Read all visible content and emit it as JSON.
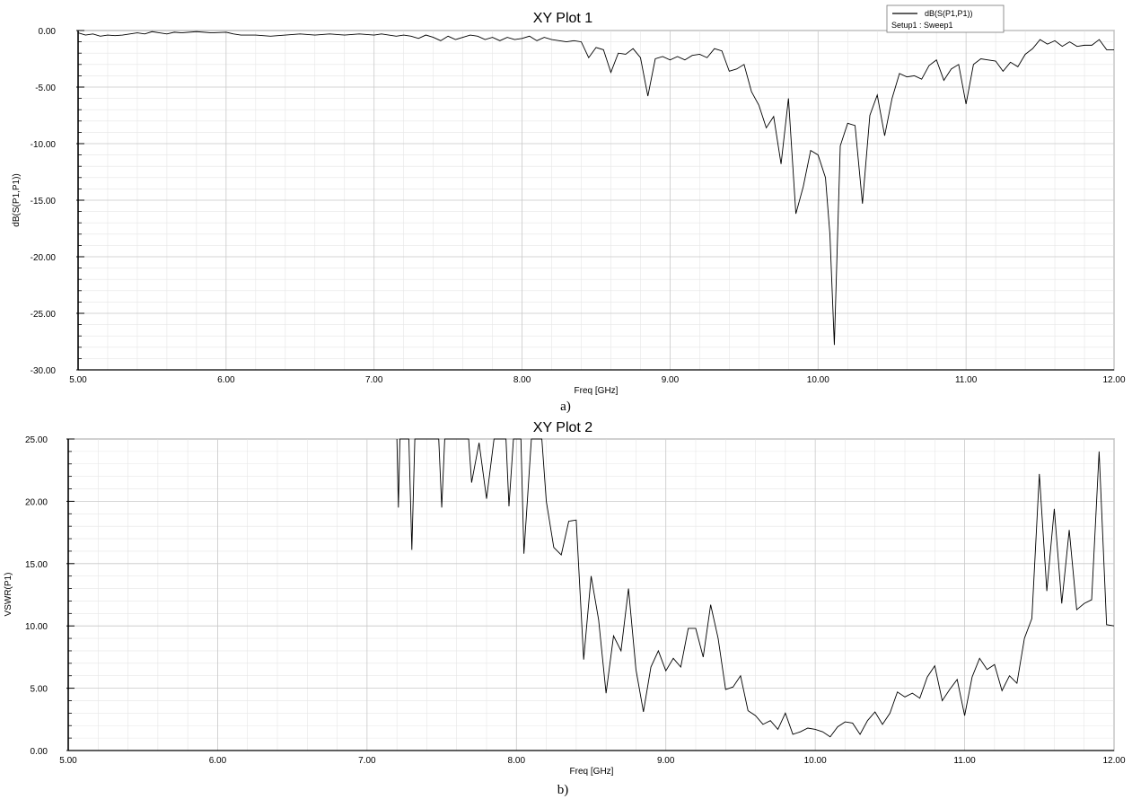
{
  "chart_data": [
    {
      "type": "line",
      "title": "XY Plot 1",
      "xlabel": "Freq [GHz]",
      "ylabel": "dB(S(P1,P1))",
      "caption": "a)",
      "xlim": [
        5,
        12
      ],
      "ylim": [
        -30,
        0
      ],
      "x_ticks": [
        "5.00",
        "6.00",
        "7.00",
        "8.00",
        "9.00",
        "10.00",
        "11.00",
        "12.00"
      ],
      "y_ticks": [
        "0.00",
        "-5.00",
        "-10.00",
        "-15.00",
        "-20.00",
        "-25.00",
        "-30.00"
      ],
      "grid": true,
      "legend_position": "top-right",
      "legend": {
        "trace": "dB(S(P1,P1))",
        "setup": "Setup1 : Sweep1"
      },
      "series": [
        {
          "name": "dB(S(P1,P1))",
          "color": "#000000",
          "points": [
            [
              5.0,
              -0.2
            ],
            [
              5.05,
              -0.4
            ],
            [
              5.1,
              -0.3
            ],
            [
              5.15,
              -0.5
            ],
            [
              5.2,
              -0.4
            ],
            [
              5.25,
              -0.45
            ],
            [
              5.3,
              -0.4
            ],
            [
              5.35,
              -0.3
            ],
            [
              5.4,
              -0.2
            ],
            [
              5.45,
              -0.3
            ],
            [
              5.5,
              -0.1
            ],
            [
              5.55,
              -0.2
            ],
            [
              5.6,
              -0.3
            ],
            [
              5.65,
              -0.15
            ],
            [
              5.7,
              -0.2
            ],
            [
              5.8,
              -0.1
            ],
            [
              5.9,
              -0.2
            ],
            [
              6.0,
              -0.15
            ],
            [
              6.05,
              -0.3
            ],
            [
              6.1,
              -0.4
            ],
            [
              6.2,
              -0.4
            ],
            [
              6.3,
              -0.5
            ],
            [
              6.4,
              -0.4
            ],
            [
              6.5,
              -0.3
            ],
            [
              6.6,
              -0.4
            ],
            [
              6.7,
              -0.3
            ],
            [
              6.8,
              -0.4
            ],
            [
              6.9,
              -0.3
            ],
            [
              7.0,
              -0.4
            ],
            [
              7.05,
              -0.3
            ],
            [
              7.1,
              -0.4
            ],
            [
              7.15,
              -0.5
            ],
            [
              7.2,
              -0.4
            ],
            [
              7.25,
              -0.5
            ],
            [
              7.3,
              -0.7
            ],
            [
              7.35,
              -0.4
            ],
            [
              7.4,
              -0.6
            ],
            [
              7.45,
              -0.9
            ],
            [
              7.5,
              -0.5
            ],
            [
              7.55,
              -0.8
            ],
            [
              7.6,
              -0.6
            ],
            [
              7.65,
              -0.4
            ],
            [
              7.7,
              -0.5
            ],
            [
              7.75,
              -0.8
            ],
            [
              7.8,
              -0.6
            ],
            [
              7.85,
              -0.9
            ],
            [
              7.9,
              -0.6
            ],
            [
              7.95,
              -0.8
            ],
            [
              8.0,
              -0.7
            ],
            [
              8.05,
              -0.5
            ],
            [
              8.1,
              -0.9
            ],
            [
              8.15,
              -0.6
            ],
            [
              8.2,
              -0.8
            ],
            [
              8.25,
              -0.9
            ],
            [
              8.3,
              -1.0
            ],
            [
              8.35,
              -0.9
            ],
            [
              8.4,
              -1.0
            ],
            [
              8.45,
              -2.4
            ],
            [
              8.5,
              -1.5
            ],
            [
              8.55,
              -1.7
            ],
            [
              8.6,
              -3.7
            ],
            [
              8.65,
              -2.0
            ],
            [
              8.7,
              -2.1
            ],
            [
              8.75,
              -1.6
            ],
            [
              8.8,
              -2.4
            ],
            [
              8.85,
              -5.8
            ],
            [
              8.9,
              -2.5
            ],
            [
              8.95,
              -2.3
            ],
            [
              9.0,
              -2.6
            ],
            [
              9.05,
              -2.3
            ],
            [
              9.1,
              -2.6
            ],
            [
              9.15,
              -2.2
            ],
            [
              9.2,
              -2.1
            ],
            [
              9.25,
              -2.4
            ],
            [
              9.3,
              -1.6
            ],
            [
              9.35,
              -1.8
            ],
            [
              9.4,
              -3.6
            ],
            [
              9.45,
              -3.4
            ],
            [
              9.5,
              -3.0
            ],
            [
              9.55,
              -5.4
            ],
            [
              9.6,
              -6.6
            ],
            [
              9.65,
              -8.6
            ],
            [
              9.7,
              -7.6
            ],
            [
              9.75,
              -11.8
            ],
            [
              9.8,
              -6.0
            ],
            [
              9.85,
              -16.2
            ],
            [
              9.9,
              -13.8
            ],
            [
              9.95,
              -10.6
            ],
            [
              10.0,
              -11.0
            ],
            [
              10.05,
              -13.0
            ],
            [
              10.08,
              -18.0
            ],
            [
              10.11,
              -27.8
            ],
            [
              10.15,
              -10.2
            ],
            [
              10.2,
              -8.2
            ],
            [
              10.25,
              -8.4
            ],
            [
              10.3,
              -15.3
            ],
            [
              10.35,
              -7.5
            ],
            [
              10.4,
              -5.7
            ],
            [
              10.45,
              -9.3
            ],
            [
              10.5,
              -6.0
            ],
            [
              10.55,
              -3.8
            ],
            [
              10.6,
              -4.1
            ],
            [
              10.65,
              -4.0
            ],
            [
              10.7,
              -4.3
            ],
            [
              10.75,
              -3.1
            ],
            [
              10.8,
              -2.6
            ],
            [
              10.85,
              -4.4
            ],
            [
              10.9,
              -3.4
            ],
            [
              10.95,
              -3.0
            ],
            [
              11.0,
              -6.5
            ],
            [
              11.05,
              -3.0
            ],
            [
              11.1,
              -2.5
            ],
            [
              11.15,
              -2.6
            ],
            [
              11.2,
              -2.7
            ],
            [
              11.25,
              -3.6
            ],
            [
              11.3,
              -2.8
            ],
            [
              11.35,
              -3.2
            ],
            [
              11.4,
              -2.1
            ],
            [
              11.45,
              -1.6
            ],
            [
              11.5,
              -0.8
            ],
            [
              11.55,
              -1.2
            ],
            [
              11.6,
              -0.9
            ],
            [
              11.65,
              -1.4
            ],
            [
              11.7,
              -1.0
            ],
            [
              11.75,
              -1.4
            ],
            [
              11.8,
              -1.3
            ],
            [
              11.85,
              -1.3
            ],
            [
              11.9,
              -0.8
            ],
            [
              11.95,
              -1.7
            ],
            [
              12.0,
              -1.7
            ]
          ]
        }
      ]
    },
    {
      "type": "line",
      "title": "XY Plot 2",
      "xlabel": "Freq [GHz]",
      "ylabel": "VSWR(P1)",
      "caption": "b)",
      "xlim": [
        5,
        12
      ],
      "ylim": [
        0,
        25
      ],
      "x_ticks": [
        "5.00",
        "6.00",
        "7.00",
        "8.00",
        "9.00",
        "10.00",
        "11.00",
        "12.00"
      ],
      "y_ticks": [
        "25.00",
        "20.00",
        "15.00",
        "10.00",
        "5.00",
        "0.00"
      ],
      "grid": true,
      "series": [
        {
          "name": "VSWR(P1)",
          "color": "#000000",
          "points": [
            [
              7.2,
              25
            ],
            [
              7.21,
              19.5
            ],
            [
              7.22,
              25
            ],
            [
              7.28,
              25
            ],
            [
              7.3,
              16.1
            ],
            [
              7.32,
              25
            ],
            [
              7.48,
              25
            ],
            [
              7.5,
              19.5
            ],
            [
              7.52,
              25
            ],
            [
              7.68,
              25
            ],
            [
              7.7,
              21.5
            ],
            [
              7.75,
              24.7
            ],
            [
              7.8,
              20.2
            ],
            [
              7.85,
              25
            ],
            [
              7.93,
              25
            ],
            [
              7.95,
              19.6
            ],
            [
              7.98,
              25
            ],
            [
              8.03,
              25
            ],
            [
              8.05,
              15.8
            ],
            [
              8.1,
              25
            ],
            [
              8.17,
              25
            ],
            [
              8.2,
              20.0
            ],
            [
              8.25,
              16.3
            ],
            [
              8.3,
              15.7
            ],
            [
              8.35,
              18.4
            ],
            [
              8.4,
              18.5
            ],
            [
              8.45,
              7.3
            ],
            [
              8.5,
              14.0
            ],
            [
              8.55,
              10.5
            ],
            [
              8.6,
              4.6
            ],
            [
              8.65,
              9.2
            ],
            [
              8.7,
              8.0
            ],
            [
              8.75,
              13.0
            ],
            [
              8.8,
              6.5
            ],
            [
              8.85,
              3.1
            ],
            [
              8.9,
              6.7
            ],
            [
              8.95,
              8.0
            ],
            [
              9.0,
              6.4
            ],
            [
              9.05,
              7.4
            ],
            [
              9.1,
              6.7
            ],
            [
              9.15,
              9.8
            ],
            [
              9.2,
              9.8
            ],
            [
              9.25,
              7.5
            ],
            [
              9.3,
              11.7
            ],
            [
              9.35,
              9.0
            ],
            [
              9.4,
              4.9
            ],
            [
              9.45,
              5.1
            ],
            [
              9.5,
              6.0
            ],
            [
              9.55,
              3.2
            ],
            [
              9.6,
              2.8
            ],
            [
              9.65,
              2.1
            ],
            [
              9.7,
              2.4
            ],
            [
              9.75,
              1.7
            ],
            [
              9.8,
              3.0
            ],
            [
              9.85,
              1.3
            ],
            [
              9.9,
              1.5
            ],
            [
              9.95,
              1.8
            ],
            [
              10.0,
              1.7
            ],
            [
              10.05,
              1.5
            ],
            [
              10.1,
              1.1
            ],
            [
              10.15,
              1.9
            ],
            [
              10.2,
              2.3
            ],
            [
              10.25,
              2.2
            ],
            [
              10.3,
              1.3
            ],
            [
              10.35,
              2.4
            ],
            [
              10.4,
              3.1
            ],
            [
              10.45,
              2.1
            ],
            [
              10.5,
              3.0
            ],
            [
              10.55,
              4.7
            ],
            [
              10.6,
              4.3
            ],
            [
              10.65,
              4.6
            ],
            [
              10.7,
              4.2
            ],
            [
              10.75,
              5.9
            ],
            [
              10.8,
              6.8
            ],
            [
              10.85,
              4.0
            ],
            [
              10.9,
              4.9
            ],
            [
              10.95,
              5.7
            ],
            [
              11.0,
              2.8
            ],
            [
              11.05,
              5.9
            ],
            [
              11.1,
              7.4
            ],
            [
              11.15,
              6.5
            ],
            [
              11.2,
              6.9
            ],
            [
              11.25,
              4.8
            ],
            [
              11.3,
              6.0
            ],
            [
              11.35,
              5.4
            ],
            [
              11.4,
              9.0
            ],
            [
              11.45,
              10.6
            ],
            [
              11.5,
              22.2
            ],
            [
              11.55,
              12.8
            ],
            [
              11.6,
              19.4
            ],
            [
              11.65,
              11.8
            ],
            [
              11.7,
              17.7
            ],
            [
              11.75,
              11.3
            ],
            [
              11.8,
              11.8
            ],
            [
              11.85,
              12.1
            ],
            [
              11.9,
              24.0
            ],
            [
              11.95,
              10.1
            ],
            [
              12.0,
              10.0
            ]
          ]
        }
      ]
    }
  ]
}
